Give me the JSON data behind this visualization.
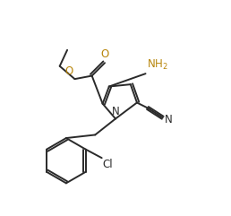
{
  "background_color": "#ffffff",
  "line_color": "#2a2a2a",
  "label_color_O": "#b8860b",
  "label_color_N_amino": "#b8860b",
  "linewidth": 1.4,
  "figsize": [
    2.58,
    2.41
  ],
  "dpi": 100,
  "xlim": [
    0.0,
    1.0
  ],
  "ylim": [
    0.0,
    1.0
  ]
}
